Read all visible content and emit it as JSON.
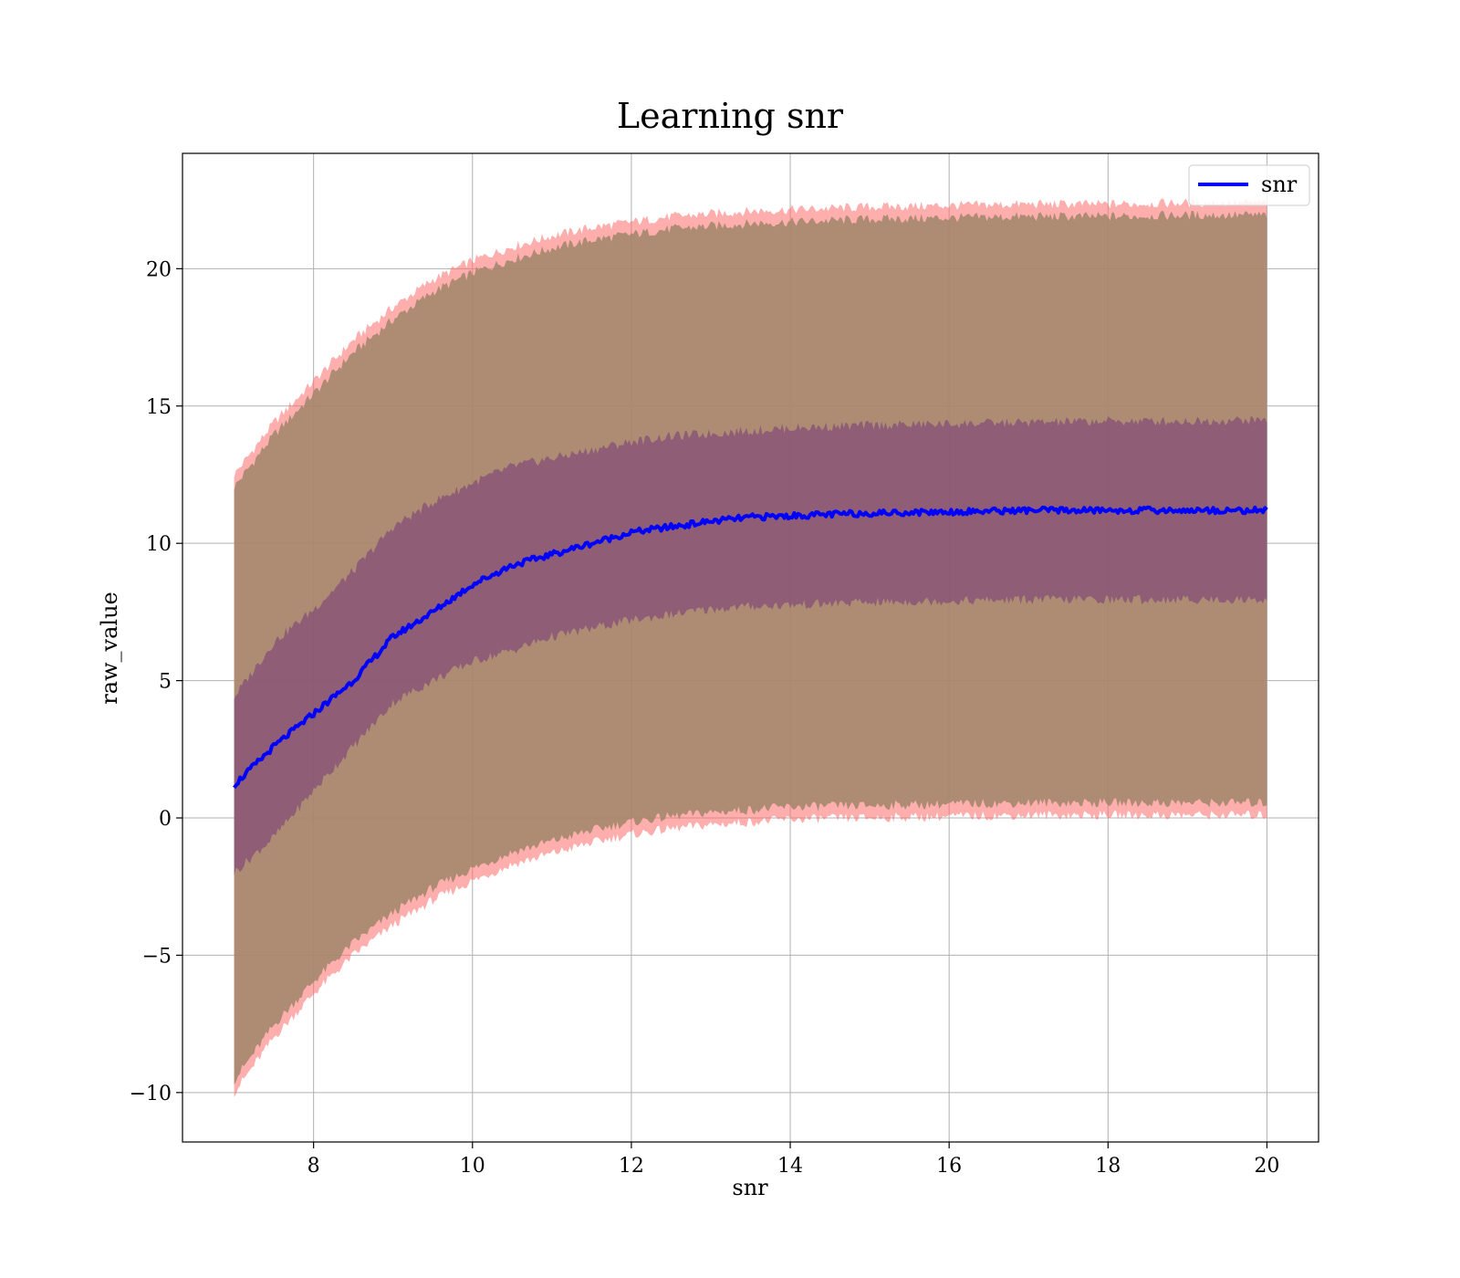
{
  "chart_data": {
    "type": "line",
    "title": "Learning snr",
    "xlabel": "snr",
    "ylabel": "raw_value",
    "xlim": [
      6.35,
      20.65
    ],
    "ylim": [
      -11.8,
      24.2
    ],
    "xticks": [
      8,
      10,
      12,
      14,
      16,
      18,
      20
    ],
    "yticks": [
      -10,
      -5,
      0,
      5,
      10,
      15,
      20
    ],
    "ytick_labels": [
      "−10",
      "−5",
      "0",
      "5",
      "10",
      "15",
      "20"
    ],
    "grid": true,
    "legend": {
      "placement": "top-right",
      "entries": [
        "snr"
      ]
    },
    "colors": {
      "line": "#0000ff",
      "outer_band": "#ff6b6b",
      "outer_band_inner": "#a0866a",
      "inner_band": "#7a3f78"
    },
    "x": [
      7.0,
      7.5,
      8.0,
      8.5,
      9.0,
      9.5,
      10.0,
      10.5,
      11.0,
      11.5,
      12.0,
      12.5,
      13.0,
      13.5,
      14.0,
      15.0,
      16.0,
      17.0,
      18.0,
      19.0,
      20.0
    ],
    "series": [
      {
        "name": "snr",
        "values": [
          1.2,
          2.6,
          3.8,
          5.0,
          6.6,
          7.5,
          8.5,
          9.2,
          9.6,
          10.0,
          10.4,
          10.6,
          10.8,
          10.95,
          11.0,
          11.1,
          11.15,
          11.2,
          11.2,
          11.2,
          11.2
        ]
      }
    ],
    "inner_band": {
      "upper": [
        4.4,
        6.4,
        7.6,
        9.0,
        10.6,
        11.5,
        12.2,
        12.8,
        13.1,
        13.4,
        13.7,
        13.9,
        14.0,
        14.1,
        14.2,
        14.3,
        14.35,
        14.4,
        14.45,
        14.45,
        14.5
      ],
      "lower": [
        -2.0,
        -0.7,
        1.0,
        2.6,
        4.2,
        5.0,
        5.7,
        6.1,
        6.6,
        6.9,
        7.2,
        7.4,
        7.6,
        7.7,
        7.75,
        7.85,
        7.9,
        7.95,
        7.95,
        7.95,
        7.95
      ]
    },
    "outer_band": {
      "upper": [
        12.5,
        14.4,
        15.9,
        17.4,
        18.6,
        19.6,
        20.3,
        20.8,
        21.2,
        21.5,
        21.7,
        21.9,
        22.0,
        22.1,
        22.15,
        22.25,
        22.3,
        22.35,
        22.35,
        22.4,
        22.4
      ],
      "lower": [
        -10.0,
        -8.0,
        -6.4,
        -5.0,
        -3.9,
        -3.0,
        -2.3,
        -1.7,
        -1.3,
        -0.9,
        -0.6,
        -0.4,
        -0.25,
        -0.15,
        -0.05,
        0.0,
        0.05,
        0.1,
        0.1,
        0.1,
        0.1
      ]
    }
  }
}
